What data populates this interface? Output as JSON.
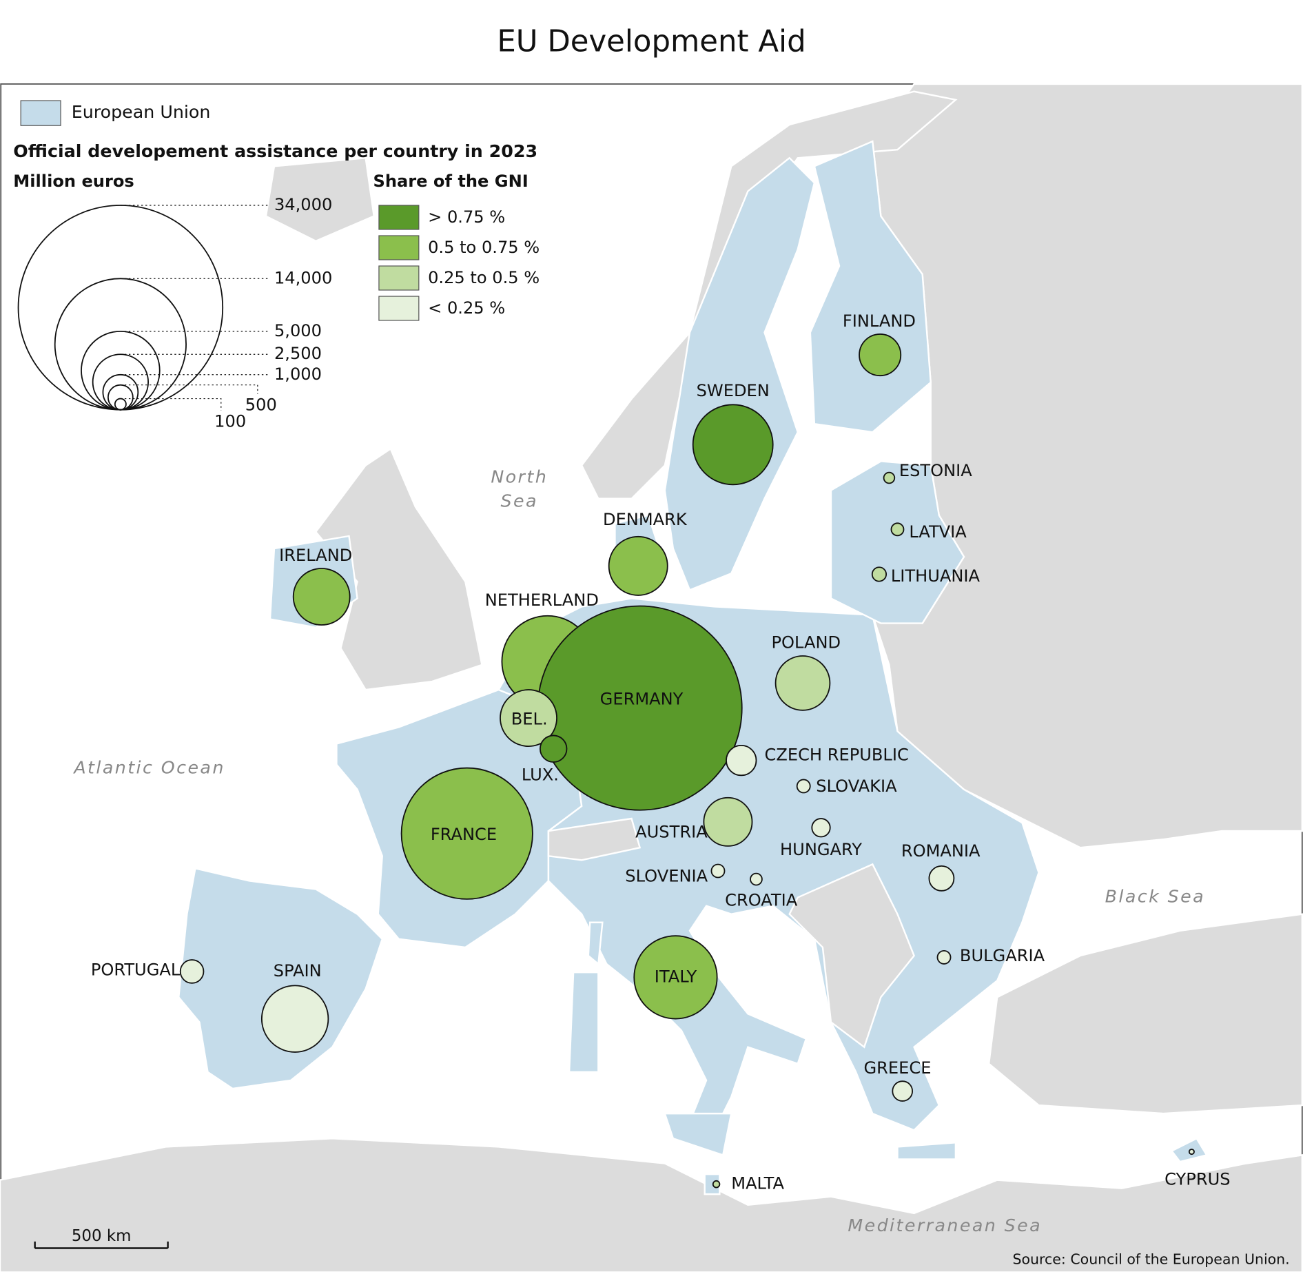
{
  "title": "EU Development Aid",
  "legend": {
    "eu_label": "European Union",
    "eu_color": "#c5dcea",
    "heading": "Official developement assistance per country in 2023",
    "size_title": "Million euros",
    "size_legend": [
      {
        "value": 34000,
        "label": "34,000"
      },
      {
        "value": 14000,
        "label": "14,000"
      },
      {
        "value": 5000,
        "label": "5,000"
      },
      {
        "value": 2500,
        "label": "2,500"
      },
      {
        "value": 1000,
        "label": "1,000"
      },
      {
        "value": 500,
        "label": "500"
      },
      {
        "value": 100,
        "label": "100"
      }
    ],
    "gni_title": "Share of the GNI",
    "gni_classes": [
      {
        "label": "> 0.75 %",
        "color": "#5a9a2a"
      },
      {
        "label": "0.5 to 0.75 %",
        "color": "#8bbf4c"
      },
      {
        "label": "0.25 to 0.5 %",
        "color": "#c0dca0"
      },
      {
        "label": "< 0.25 %",
        "color": "#e6f1dc"
      }
    ]
  },
  "countries": [
    {
      "name": "NETHERLAND",
      "value": 6800,
      "color": "#8bbf4c"
    },
    {
      "name": "GERMANY",
      "value": 33900,
      "color": "#5a9a2a"
    },
    {
      "name": "BEL.",
      "value": 2600,
      "color": "#c0dca0"
    },
    {
      "name": "LUX.",
      "value": 575,
      "color": "#5a9a2a"
    },
    {
      "name": "FRANCE",
      "value": 14000,
      "color": "#8bbf4c"
    },
    {
      "name": "SWEDEN",
      "value": 5200,
      "color": "#5a9a2a"
    },
    {
      "name": "ITALY",
      "value": 5600,
      "color": "#8bbf4c"
    },
    {
      "name": "SPAIN",
      "value": 3600,
      "color": "#e6f1dc"
    },
    {
      "name": "DENMARK",
      "value": 2800,
      "color": "#8bbf4c"
    },
    {
      "name": "POLAND",
      "value": 2400,
      "color": "#c0dca0"
    },
    {
      "name": "IRELAND",
      "value": 2600,
      "color": "#8bbf4c"
    },
    {
      "name": "AUSTRIA",
      "value": 1900,
      "color": "#c0dca0"
    },
    {
      "name": "FINLAND",
      "value": 1400,
      "color": "#8bbf4c"
    },
    {
      "name": "PORTUGAL",
      "value": 440,
      "color": "#e6f1dc"
    },
    {
      "name": "CZECH REPUBLIC",
      "value": 730,
      "color": "#e6f1dc"
    },
    {
      "name": "ROMANIA",
      "value": 500,
      "color": "#e6f1dc"
    },
    {
      "name": "GREECE",
      "value": 320,
      "color": "#e6f1dc"
    },
    {
      "name": "HUNGARY",
      "value": 270,
      "color": "#e6f1dc"
    },
    {
      "name": "BULGARIA",
      "value": 140,
      "color": "#e6f1dc"
    },
    {
      "name": "SLOVAKIA",
      "value": 140,
      "color": "#e6f1dc"
    },
    {
      "name": "CROATIA",
      "value": 110,
      "color": "#e6f1dc"
    },
    {
      "name": "SLOVENIA",
      "value": 140,
      "color": "#e6f1dc"
    },
    {
      "name": "ESTONIA",
      "value": 95,
      "color": "#c0dca0"
    },
    {
      "name": "LATVIA",
      "value": 125,
      "color": "#c0dca0"
    },
    {
      "name": "LITHUANIA",
      "value": 160,
      "color": "#c0dca0"
    },
    {
      "name": "MALTA",
      "value": 36,
      "color": "#c0dca0"
    },
    {
      "name": "CYPRUS",
      "value": 20,
      "color": "#e6f1dc"
    }
  ],
  "sea_labels": [
    {
      "lines": [
        "North",
        "Sea"
      ]
    },
    {
      "lines": [
        "Atlantic Ocean"
      ]
    },
    {
      "lines": [
        "Black Sea"
      ]
    },
    {
      "lines": [
        "Mediterranean Sea"
      ]
    }
  ],
  "scale_label": "500 km",
  "source": "Source: Council of the European Union."
}
